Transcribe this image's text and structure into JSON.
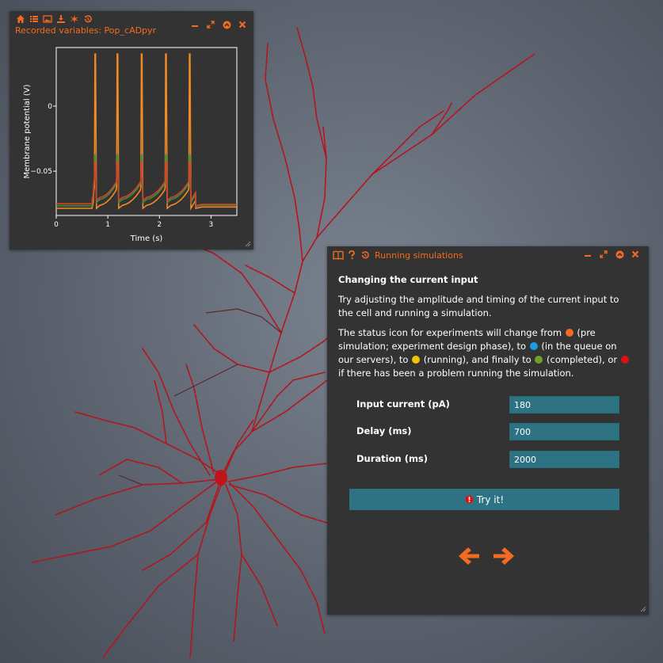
{
  "plot_panel": {
    "title": "Recorded variables: Pop_cADpyr",
    "toolbar_icons": [
      "home-icon",
      "list-icon",
      "image-icon",
      "download-icon",
      "spark-icon",
      "history-icon"
    ],
    "window_buttons": [
      "minimize-icon",
      "maximize-icon",
      "collapse-icon",
      "close-icon"
    ]
  },
  "chart_data": {
    "type": "line",
    "xlabel": "Time (s)",
    "ylabel": "Membrane potential (V)",
    "xlim": [
      0,
      3.5
    ],
    "ylim": [
      -0.084,
      0.045
    ],
    "xticks": [
      0,
      1,
      2,
      3
    ],
    "yticks": [
      0,
      -0.05
    ],
    "ytick_labels": [
      "0",
      "−0.05"
    ],
    "grid": false,
    "spike_times": [
      0.75,
      1.18,
      1.65,
      2.12,
      2.58
    ],
    "series": [
      {
        "color": "#f28a25",
        "rest_before": -0.0785,
        "rest_after": -0.0775,
        "plateau": -0.0725,
        "peak": 0.04,
        "clip": null
      },
      {
        "color": "#3d8f3a",
        "rest_before": -0.0765,
        "rest_after": -0.076,
        "plateau": -0.068,
        "peak": -0.0375,
        "clip": -0.0375
      },
      {
        "color": "#d8442a",
        "rest_before": -0.075,
        "rest_after": -0.0755,
        "plateau": -0.0665,
        "peak": -0.043,
        "clip": -0.043
      }
    ],
    "current_start": 0.7,
    "current_end": 2.7
  },
  "tutorial_panel": {
    "title": "Running simulations",
    "header_icons": [
      "tutorial-book-icon",
      "help-icon",
      "history-icon"
    ],
    "heading": "Changing the current input",
    "para1": "Try adjusting the amplitude and timing of the current input to the cell and running a simulation.",
    "para2_a": "The status icon for experiments will change from",
    "para2_b": "(pre simulation; experiment design phase), to",
    "para2_c": "(in the queue on our servers), to",
    "para2_d": "(running), and finally to",
    "para2_e": "(completed), or",
    "para2_f": "if there has been a problem running the simulation.",
    "status_colors": {
      "pre": "#f26b21",
      "queue": "#1d9ce5",
      "running": "#f5c400",
      "completed": "#6ea22a",
      "error": "#e01010"
    },
    "fields": {
      "current_label": "Input current (pA)",
      "current_value": "180",
      "delay_label": "Delay (ms)",
      "delay_value": "700",
      "duration_label": "Duration (ms)",
      "duration_value": "2000"
    },
    "try_button": "Try it!",
    "nav": {
      "prev_icon": "arrow-left-icon",
      "next_icon": "arrow-right-icon"
    }
  },
  "colors": {
    "accent": "#f26b21",
    "panel_bg": "#333333",
    "input_bg": "#2e7383",
    "neuron": "#c0141a"
  }
}
